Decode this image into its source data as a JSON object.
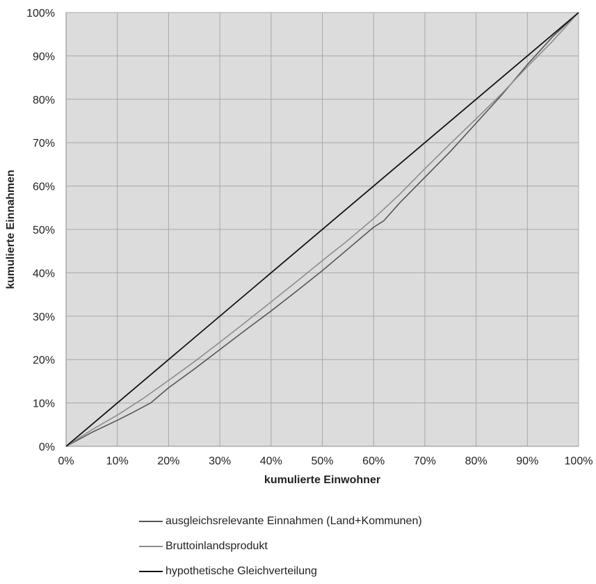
{
  "chart_data": {
    "type": "line",
    "xlabel": "kumulierte Einwohner",
    "ylabel": "kumulierte Einnahmen",
    "xlim": [
      0,
      100
    ],
    "ylim": [
      0,
      100
    ],
    "x_ticks": [
      "0%",
      "10%",
      "20%",
      "30%",
      "40%",
      "50%",
      "60%",
      "70%",
      "80%",
      "90%",
      "100%"
    ],
    "y_ticks": [
      "0%",
      "10%",
      "20%",
      "30%",
      "40%",
      "50%",
      "60%",
      "70%",
      "80%",
      "90%",
      "100%"
    ],
    "grid": true,
    "plot_background": "#dcdcdc",
    "legend_position": "bottom",
    "series": [
      {
        "name": "ausgleichsrelevante Einnahmen (Land+Kommunen)",
        "color": "#555555",
        "x": [
          0,
          5,
          10,
          13,
          16.5,
          20,
          25,
          30,
          35,
          40,
          45,
          50,
          55,
          60,
          62,
          65,
          70,
          75,
          80,
          85,
          90,
          95,
          100
        ],
        "y": [
          0,
          3.2,
          6,
          7.8,
          10,
          13.5,
          17.8,
          22.3,
          26.8,
          31.2,
          35.8,
          40.5,
          45.5,
          50.5,
          52,
          56,
          62,
          68,
          74.5,
          81,
          88,
          94.5,
          100
        ]
      },
      {
        "name": "Bruttoinlandsprodukt",
        "color": "#8c8c8c",
        "x": [
          0,
          5,
          10,
          15,
          20,
          25,
          30,
          35,
          40,
          45,
          50,
          55,
          60,
          63,
          65,
          70,
          75,
          80,
          85,
          90,
          95,
          100
        ],
        "y": [
          0,
          3.8,
          7.2,
          11,
          15.2,
          19.5,
          24,
          28.6,
          33.3,
          38,
          42.8,
          47.5,
          52.5,
          55.8,
          58,
          64,
          69.8,
          75.5,
          81.3,
          87.5,
          93.5,
          100
        ]
      },
      {
        "name": "hypothetische Gleichverteilung",
        "color": "#111111",
        "x": [
          0,
          100
        ],
        "y": [
          0,
          100
        ]
      }
    ]
  }
}
